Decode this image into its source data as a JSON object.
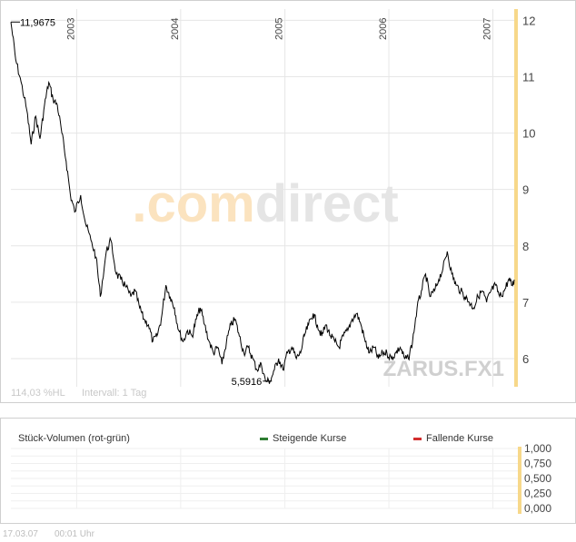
{
  "chart_data": [
    {
      "type": "line",
      "title": "",
      "xlabel": "",
      "ylabel": "",
      "y_axis_position": "right",
      "ylim": [
        5.5,
        12.2
      ],
      "xlim": [
        "2002-05-15",
        "2007-03-17"
      ],
      "y_ticks": [
        "12",
        "11",
        "10",
        "9",
        "8",
        "7",
        "6"
      ],
      "x_ticks": [
        {
          "label": "2003",
          "date": "2003-01-01"
        },
        {
          "label": "2004",
          "date": "2004-01-01"
        },
        {
          "label": "2005",
          "date": "2005-01-01"
        },
        {
          "label": "2006",
          "date": "2006-01-01"
        },
        {
          "label": "2007",
          "date": "2007-01-01"
        }
      ],
      "grid": true,
      "watermark": ".comdirect",
      "instrument": "ZARUS.FX1",
      "range_info": "114,03 %HL",
      "interval_info": "Intervall: 1 Tag",
      "max_label": "11,9675",
      "min_label": "5,5916",
      "series": [
        {
          "x": [
            "2002-05-15",
            "2002-06-01",
            "2002-06-20",
            "2002-07-10",
            "2002-07-25",
            "2002-08-10",
            "2002-08-25",
            "2002-09-10",
            "2002-09-25",
            "2002-10-10",
            "2002-10-25",
            "2002-11-10",
            "2002-11-25",
            "2002-12-10",
            "2002-12-25",
            "2003-01-15",
            "2003-02-01",
            "2003-02-20",
            "2003-03-10",
            "2003-03-25",
            "2003-04-15",
            "2003-05-01",
            "2003-05-20",
            "2003-06-05",
            "2003-06-20",
            "2003-07-10",
            "2003-07-25",
            "2003-08-10",
            "2003-08-25",
            "2003-09-10",
            "2003-09-25",
            "2003-10-10",
            "2003-10-25",
            "2003-11-10",
            "2003-11-25",
            "2003-12-10",
            "2003-12-25",
            "2004-01-10",
            "2004-01-25",
            "2004-02-10",
            "2004-02-25",
            "2004-03-10",
            "2004-03-25",
            "2004-04-10",
            "2004-04-25",
            "2004-05-10",
            "2004-05-25",
            "2004-06-10",
            "2004-06-25",
            "2004-07-10",
            "2004-07-25",
            "2004-08-10",
            "2004-08-25",
            "2004-09-10",
            "2004-09-25",
            "2004-10-10",
            "2004-10-25",
            "2004-11-10",
            "2004-11-25",
            "2004-12-10",
            "2004-12-25",
            "2005-01-10",
            "2005-01-25",
            "2005-02-10",
            "2005-02-25",
            "2005-03-10",
            "2005-03-25",
            "2005-04-10",
            "2005-04-25",
            "2005-05-10",
            "2005-05-25",
            "2005-06-10",
            "2005-06-25",
            "2005-07-10",
            "2005-07-25",
            "2005-08-10",
            "2005-08-25",
            "2005-09-10",
            "2005-09-25",
            "2005-10-10",
            "2005-10-25",
            "2005-11-10",
            "2005-11-25",
            "2005-12-10",
            "2005-12-25",
            "2006-01-10",
            "2006-01-25",
            "2006-02-10",
            "2006-02-25",
            "2006-03-10",
            "2006-03-25",
            "2006-04-10",
            "2006-04-25",
            "2006-05-10",
            "2006-05-25",
            "2006-06-10",
            "2006-06-25",
            "2006-07-10",
            "2006-07-25",
            "2006-08-10",
            "2006-08-25",
            "2006-09-10",
            "2006-09-25",
            "2006-10-10",
            "2006-10-25",
            "2006-11-10",
            "2006-11-25",
            "2006-12-10",
            "2006-12-25",
            "2007-01-10",
            "2007-01-25",
            "2007-02-10",
            "2007-02-25",
            "2007-03-10",
            "2007-03-17"
          ],
          "y": [
            11.97,
            11.3,
            10.9,
            10.4,
            9.8,
            10.3,
            9.9,
            10.5,
            10.9,
            10.6,
            10.5,
            10.0,
            9.5,
            8.9,
            8.6,
            8.9,
            8.4,
            8.1,
            7.8,
            7.1,
            7.9,
            8.1,
            7.5,
            7.4,
            7.3,
            7.1,
            7.2,
            6.9,
            6.7,
            6.6,
            6.3,
            6.4,
            6.7,
            7.3,
            7.1,
            6.9,
            6.5,
            6.3,
            6.5,
            6.4,
            6.7,
            6.9,
            6.6,
            6.3,
            6.1,
            6.2,
            5.9,
            6.3,
            6.6,
            6.7,
            6.4,
            6.1,
            6.2,
            6.0,
            5.8,
            5.9,
            5.6,
            5.6,
            5.8,
            6.0,
            5.8,
            6.1,
            6.2,
            6.0,
            6.1,
            6.4,
            6.6,
            6.8,
            6.6,
            6.4,
            6.6,
            6.4,
            6.3,
            6.2,
            6.4,
            6.5,
            6.7,
            6.8,
            6.6,
            6.3,
            6.1,
            6.2,
            6.0,
            6.1,
            6.1,
            6.0,
            6.1,
            6.2,
            6.0,
            6.0,
            6.3,
            6.9,
            7.2,
            7.5,
            7.1,
            7.2,
            7.4,
            7.6,
            7.9,
            7.5,
            7.3,
            7.2,
            7.1,
            7.0,
            6.9,
            7.1,
            7.2,
            7.0,
            7.2,
            7.3,
            7.1,
            7.2,
            7.4,
            7.3,
            7.4
          ]
        }
      ]
    },
    {
      "type": "bar",
      "title": "Stück-Volumen (rot-grün)",
      "legend_position": "top",
      "legend": [
        {
          "label": "Steigende Kurse",
          "color": "#2e7d32"
        },
        {
          "label": "Fallende Kurse",
          "color": "#d32f2f"
        }
      ],
      "y_ticks": [
        "1,000",
        "0,750",
        "0,500",
        "0,250",
        "0,000"
      ],
      "ylim": [
        0,
        1
      ],
      "series": []
    }
  ],
  "footer": {
    "date": "17.03.07",
    "time": "00:01 Uhr"
  },
  "colors": {
    "axis_accent": "#f7d88a",
    "grid": "#e6e6e6",
    "line": "#000000",
    "watermark_orange": "#fbe3bf",
    "watermark_grey": "#e5e5e5"
  }
}
